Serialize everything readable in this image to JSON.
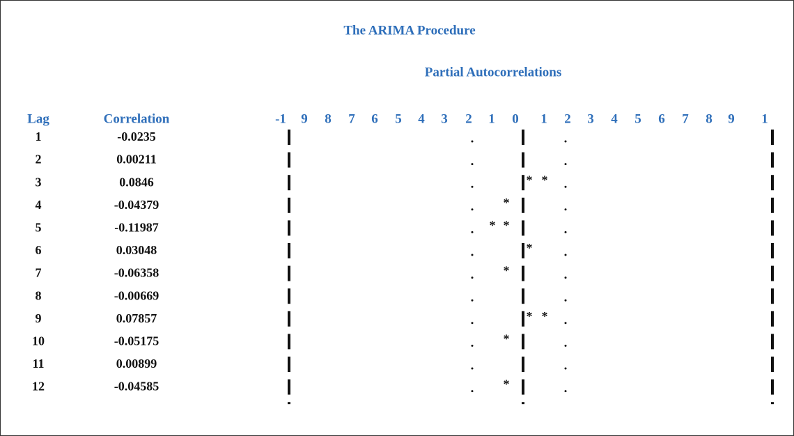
{
  "title": "The ARIMA Procedure",
  "subtitle": "Partial Autocorrelations",
  "table": {
    "headers": [
      "Lag",
      "Correlation"
    ],
    "scale": [
      "-1",
      "9",
      "8",
      "7",
      "6",
      "5",
      "4",
      "3",
      "2",
      "1",
      "0",
      "1",
      "2",
      "3",
      "4",
      "5",
      "6",
      "7",
      "8",
      "9",
      "1"
    ],
    "rows": [
      [
        1,
        -0.0235
      ],
      [
        2,
        0.00211
      ],
      [
        3,
        0.0846
      ],
      [
        4,
        -0.04379
      ],
      [
        5,
        -0.11987
      ],
      [
        6,
        0.03048
      ],
      [
        7,
        -0.06358
      ],
      [
        8,
        -0.00669
      ],
      [
        9,
        0.07857
      ],
      [
        10,
        -0.05175
      ],
      [
        11,
        0.00899
      ],
      [
        12,
        -0.04585
      ]
    ]
  }
}
